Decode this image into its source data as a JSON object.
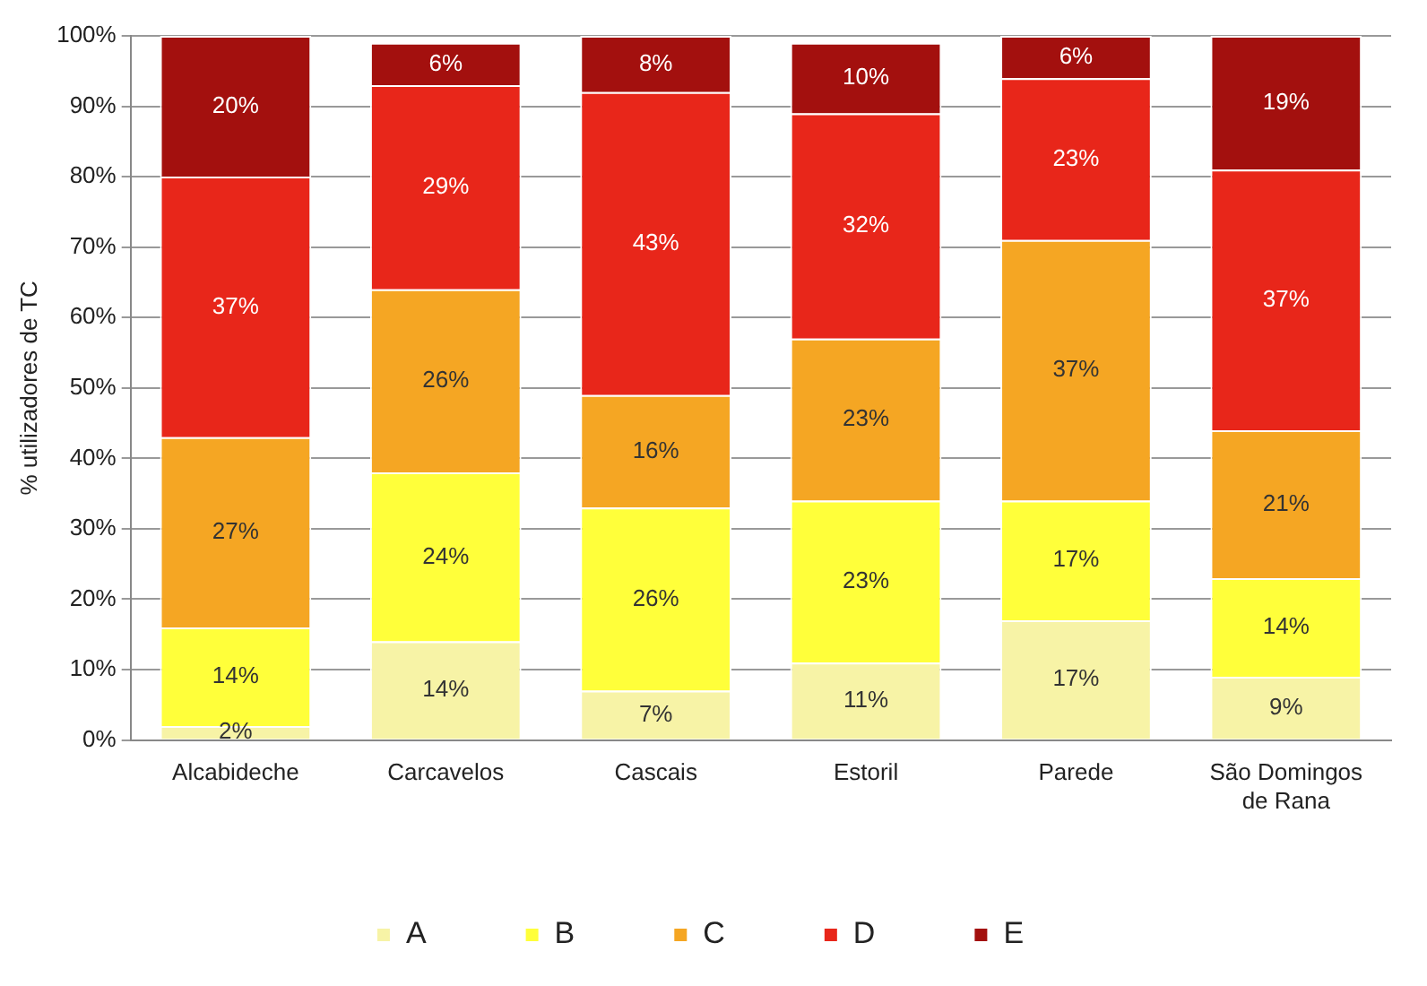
{
  "chart_data": {
    "type": "bar",
    "stacked": true,
    "ylabel": "% utilizadores de TC",
    "categories": [
      "Alcabideche",
      "Carcavelos",
      "Cascais",
      "Estoril",
      "Parede",
      "São Domingos de Rana"
    ],
    "series": [
      {
        "name": "A",
        "color": "#f7f3a6",
        "values": [
          2,
          14,
          7,
          11,
          17,
          9
        ],
        "value_labels": [
          "2%",
          "14%",
          "7%",
          "11%",
          "17%",
          "9%"
        ]
      },
      {
        "name": "B",
        "color": "#ffff3a",
        "values": [
          14,
          24,
          26,
          23,
          17,
          14
        ],
        "value_labels": [
          "14%",
          "24%",
          "26%",
          "23%",
          "17%",
          "14%"
        ]
      },
      {
        "name": "C",
        "color": "#f5a623",
        "values": [
          27,
          26,
          16,
          23,
          37,
          21
        ],
        "value_labels": [
          "27%",
          "26%",
          "16%",
          "23%",
          "37%",
          "21%"
        ]
      },
      {
        "name": "D",
        "color": "#e8261a",
        "values": [
          37,
          29,
          43,
          32,
          23,
          37
        ],
        "value_labels": [
          "37%",
          "29%",
          "43%",
          "32%",
          "23%",
          "37%"
        ]
      },
      {
        "name": "E",
        "color": "#a3100e",
        "values": [
          20,
          6,
          8,
          10,
          6,
          19
        ],
        "value_labels": [
          "20%",
          "6%",
          "8%",
          "10%",
          "6%",
          "19%"
        ]
      }
    ],
    "ylim": [
      0,
      100
    ],
    "yticks": [
      {
        "value": 0,
        "label": "0%"
      },
      {
        "value": 10,
        "label": "10%"
      },
      {
        "value": 20,
        "label": "20%"
      },
      {
        "value": 30,
        "label": "30%"
      },
      {
        "value": 40,
        "label": "40%"
      },
      {
        "value": 50,
        "label": "50%"
      },
      {
        "value": 60,
        "label": "60%"
      },
      {
        "value": 70,
        "label": "70%"
      },
      {
        "value": 80,
        "label": "80%"
      },
      {
        "value": 90,
        "label": "90%"
      },
      {
        "value": 100,
        "label": "100%"
      }
    ],
    "grid": "y",
    "legend": "bottom"
  }
}
